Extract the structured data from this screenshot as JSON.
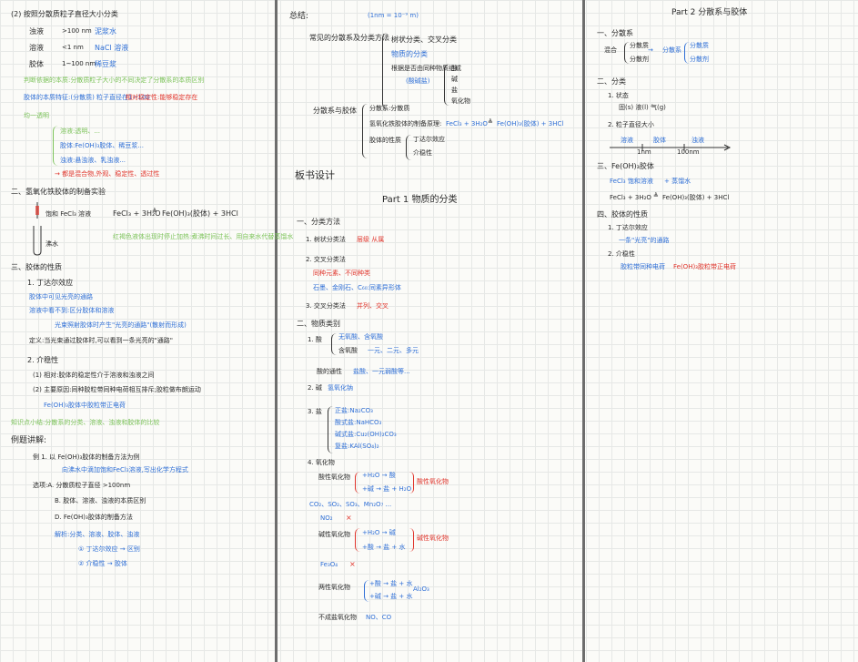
{
  "page": {
    "left": {
      "l01": "(2) 按照分散质粒子直径大小分类",
      "l02": "浊液",
      "l03": ">100 nm",
      "l04": "泥浆水",
      "l05": "溶液",
      "l06": "<1 nm",
      "l07": "NaCl 溶液",
      "l08": "胶体",
      "l09": "1~100 nm",
      "l10": "稀豆浆",
      "l11": "判断依据的本质:分散质粒子大小的不同决定了分散系的本质区别",
      "l12": "胶体的本质特征:(分散质) 粒子直径在1~100",
      "l13": "相对稳定性:能够稳定存在",
      "l14": "均一透明",
      "l15": "溶液:透明、...",
      "l16": "胶体:Fe(OH)₃胶体、稀豆浆...",
      "l17": "浊液:悬浊液、乳浊液...",
      "l18": "→ 都是混合物,外观、稳定性、透过性",
      "l19": "二、氢氧化铁胶体的制备实验",
      "l20": "饱和 FeCl₃ 溶液",
      "l21": "FeCl₃ + 3H₂O",
      "l22": "Fe(OH)₃(胶体) + 3HCl",
      "l23": "沸水",
      "l24": "红褐色液体出现时停止加热:煮沸时间过长、用自来水代替蒸馏水",
      "l25": "三、胶体的性质",
      "l26": "1. 丁达尔效应",
      "l27": "胶体中可见光亮的通路",
      "l28": "溶液中看不到:区分胶体和溶液",
      "l29": "光束照射胶体时产生\"光亮的通路\"(散射而形成)",
      "l30": "定义:当光束通过胶体时,可以看到一条光亮的\"通路\"",
      "l31": "2. 介稳性",
      "l32": "(1) 相对:胶体的稳定性介于溶液和浊液之间",
      "l33": "(2) 主要原因:同种胶粒带同种电荷相互排斥;胶粒做布朗运动",
      "l34": "Fe(OH)₃胶体中胶粒带正电荷",
      "l35": "知识点小结:分散系的分类、溶液、浊液和胶体的比较",
      "l36": "例题讲解:",
      "l37": "例 1. 以 Fe(OH)₃胶体的制备方法为例",
      "l38": "向沸水中滴加饱和FeCl₃溶液,写出化学方程式",
      "l39": "选项:A. 分散质粒子直径 >100nm",
      "l40": "B. 胶体、溶液、浊液的本质区别",
      "l41": "D. Fe(OH)₃胶体的制备方法",
      "l42": "解析:分类、溶液、胶体、浊液",
      "l43": "① 丁达尔效应 → 区别",
      "l44": "② 介稳性 → 胶体"
    },
    "middle": {
      "m01": "总结:",
      "m02": "(1nm = 10⁻⁹ m)",
      "m03": "常见的分散系及分类方法",
      "m04": "树状分类、交叉分类",
      "m05": "物质的分类",
      "m06": "根据是否由同种物质组成",
      "m07": "(酸碱盐)",
      "m08": "酸",
      "m09": "碱",
      "m10": "盐",
      "m11": "氧化物",
      "m12": "分散系与胶体",
      "m13": "分散系:分散质",
      "m14": "氢氧化铁胶体的制备原理:",
      "m15": "FeCl₃ + 3H₂O",
      "m16": "Fe(OH)₃(胶体) + 3HCl",
      "m17": "胶体的性质",
      "m18": "丁达尔效应",
      "m19": "介稳性",
      "m20": "板书设计",
      "m21": "Part 1 物质的分类",
      "m22": "一、分类方法",
      "m23": "1. 树状分类法",
      "m24": "层级 从属",
      "m25": "2. 交叉分类法",
      "m26": "同种元素、不同种类",
      "m27": "石墨、金刚石、C₆₀:同素异形体",
      "m28": "3. 交叉分类法",
      "m29": "并列、交叉",
      "m30": "二、物质类别",
      "m31": "1. 酸",
      "m32": "无氧酸、含氧酸",
      "m33": "含氧酸",
      "m34": "一元、二元、多元",
      "m35": "酸的通性",
      "m36": "盐酸、一元弱酸等...",
      "m37": "2. 碱",
      "m38": "氢氧化钠",
      "m39": "3. 盐",
      "m40": "正盐:Na₂CO₃",
      "m41": "酸式盐:NaHCO₃",
      "m42": "碱式盐:Cu₂(OH)₂CO₃",
      "m43": "复盐:KAl(SO₄)₂",
      "m44": "4. 氧化物",
      "m45": "酸性氧化物",
      "m46": "+H₂O → 酸",
      "m47": "+碱 → 盐 + H₂O",
      "m48": "酸性氧化物",
      "m49": "CO₂、SO₂、SO₃、Mn₂O₇ ...",
      "m50": "NO₂",
      "m51": "×",
      "m52": "碱性氧化物",
      "m53": "+H₂O → 碱",
      "m54": "+酸 → 盐 + 水",
      "m55": "碱性氧化物",
      "m56": "Fe₃O₄",
      "m57": "×",
      "m58": "两性氧化物",
      "m59": "+酸 → 盐 + 水",
      "m60": "+碱 → 盐 + 水",
      "m61": "Al₂O₃",
      "m62": "不成盐氧化物",
      "m63": "NO、CO"
    },
    "right": {
      "r01": "Part 2 分散系与胶体",
      "r02": "一、分散系",
      "r03": "混合",
      "r04": "分散质",
      "r05": "分散剂",
      "r06": "分散系",
      "r07": "分散质",
      "r08": "分散剂",
      "r09": "二、分类",
      "r10": "1. 状态",
      "r11": "固(s) 液(l) 气(g)",
      "r12": "2. 粒子直径大小",
      "r13": "溶液",
      "r14": "胶体",
      "r15": "浊液",
      "r16": "1nm",
      "r17": "100nm",
      "r18": "三、Fe(OH)₃胶体",
      "r19": "FeCl₃ 饱和溶液",
      "r20": "+ 蒸馏水",
      "r21": "FeCl₃ + 3H₂O",
      "r22": "Fe(OH)₃(胶体) + 3HCl",
      "r23": "四、胶体的性质",
      "r24": "1. 丁达尔效应",
      "r25": "一条\"光亮\"的通路",
      "r26": "2. 介稳性",
      "r27": "胶粒带同种电荷",
      "r28": "Fe(OH)₃胶粒带正电荷"
    }
  }
}
